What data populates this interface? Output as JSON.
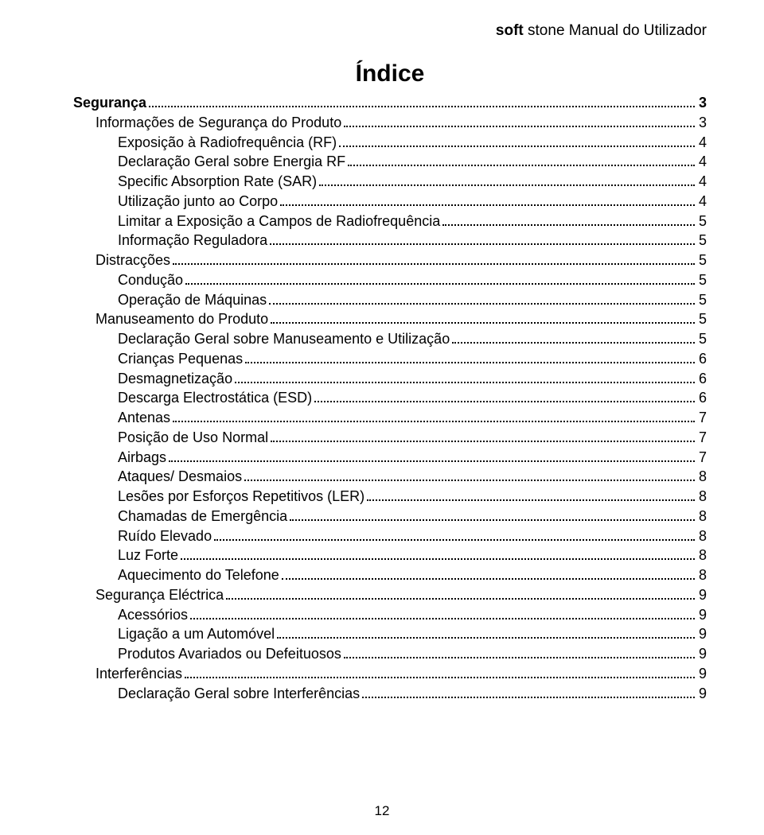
{
  "header": {
    "bold_part": "soft",
    "light_part": " stone Manual do Utilizador"
  },
  "title": "Índice",
  "toc": [
    {
      "label": "Segurança",
      "page": "3",
      "level": 0
    },
    {
      "label": "Informações de Segurança do Produto",
      "page": "3",
      "level": 1
    },
    {
      "label": "Exposição à Radiofrequência (RF)",
      "page": "4",
      "level": 2
    },
    {
      "label": "Declaração Geral sobre Energia RF",
      "page": "4",
      "level": 2
    },
    {
      "label": "Specific Absorption Rate (SAR)",
      "page": "4",
      "level": 2
    },
    {
      "label": "Utilização junto ao Corpo",
      "page": "4",
      "level": 2
    },
    {
      "label": "Limitar a Exposição a Campos de Radiofrequência",
      "page": "5",
      "level": 2
    },
    {
      "label": "Informação Reguladora",
      "page": "5",
      "level": 2
    },
    {
      "label": "Distracções",
      "page": "5",
      "level": 1
    },
    {
      "label": "Condução",
      "page": "5",
      "level": 2
    },
    {
      "label": "Operação de Máquinas",
      "page": "5",
      "level": 2
    },
    {
      "label": "Manuseamento do Produto",
      "page": "5",
      "level": 1
    },
    {
      "label": "Declaração Geral sobre Manuseamento e Utilização",
      "page": "5",
      "level": 2
    },
    {
      "label": "Crianças Pequenas",
      "page": "6",
      "level": 2
    },
    {
      "label": "Desmagnetização",
      "page": "6",
      "level": 2
    },
    {
      "label": "Descarga Electrostática (ESD)",
      "page": "6",
      "level": 2
    },
    {
      "label": "Antenas",
      "page": "7",
      "level": 2
    },
    {
      "label": "Posição de Uso Normal",
      "page": "7",
      "level": 2
    },
    {
      "label": "Airbags",
      "page": "7",
      "level": 2
    },
    {
      "label": "Ataques/ Desmaios",
      "page": "8",
      "level": 2
    },
    {
      "label": "Lesões por Esforços Repetitivos (LER)",
      "page": "8",
      "level": 2
    },
    {
      "label": "Chamadas de Emergência",
      "page": "8",
      "level": 2
    },
    {
      "label": "Ruído Elevado",
      "page": "8",
      "level": 2
    },
    {
      "label": "Luz Forte",
      "page": "8",
      "level": 2
    },
    {
      "label": "Aquecimento do Telefone",
      "page": "8",
      "level": 2
    },
    {
      "label": "Segurança Eléctrica",
      "page": "9",
      "level": 1
    },
    {
      "label": "Acessórios",
      "page": "9",
      "level": 2
    },
    {
      "label": "Ligação a um Automóvel",
      "page": "9",
      "level": 2
    },
    {
      "label": "Produtos Avariados ou Defeituosos",
      "page": "9",
      "level": 2
    },
    {
      "label": "Interferências",
      "page": "9",
      "level": 1
    },
    {
      "label": "Declaração Geral sobre Interferências",
      "page": "9",
      "level": 2
    }
  ],
  "page_number": "12"
}
